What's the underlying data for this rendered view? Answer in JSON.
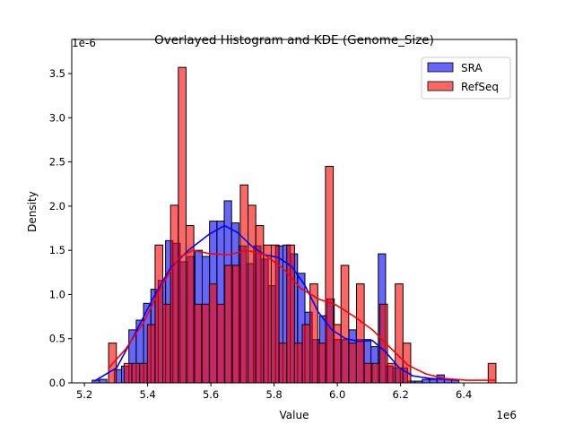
{
  "chart_data": {
    "type": "bar",
    "title": "Overlayed Histogram and KDE (Genome_Size)",
    "xlabel": "Value",
    "ylabel": "Density",
    "x_offset_label": "1e6",
    "y_offset_label": "1e-6",
    "xlim": [
      5.16,
      6.567
    ],
    "ylim": [
      0,
      3.886
    ],
    "xticks": [
      5.2,
      5.4,
      5.6,
      5.8,
      6.0,
      6.2,
      6.4
    ],
    "xtick_labels": [
      "5.2",
      "5.4",
      "5.6",
      "5.8",
      "6.0",
      "6.2",
      "6.4"
    ],
    "yticks": [
      0,
      0.5,
      1.0,
      1.5,
      2.0,
      2.5,
      3.0,
      3.5
    ],
    "ytick_labels": [
      "0.0",
      "0.5",
      "1.0",
      "1.5",
      "2.0",
      "2.5",
      "3.0",
      "3.5"
    ],
    "grid": false,
    "legend_position": "top-right",
    "series": [
      {
        "name": "SRA",
        "color": "#0000ff",
        "bin_start": 5.2247,
        "bin_width": 0.0232,
        "values": [
          0.03,
          0.04,
          0,
          0.15,
          0.19,
          0.6,
          0.71,
          0.9,
          1.06,
          1.16,
          1.61,
          1.58,
          1.37,
          1.43,
          1.5,
          1.43,
          1.83,
          1.83,
          2.06,
          1.81,
          1.55,
          1.35,
          1.55,
          1.4,
          1.1,
          1.55,
          1.56,
          1.46,
          1.24,
          0.8,
          0.49,
          0.76,
          0.95,
          0.49,
          0.49,
          0.6,
          0.49,
          0.49,
          0.41,
          1.46,
          0.19,
          0.17,
          0.17,
          0.02,
          0.02,
          0.04,
          0.04,
          0.09,
          0.04,
          0.03
        ],
        "kde": {
          "x": [
            5.231,
            5.302,
            5.359,
            5.416,
            5.472,
            5.529,
            5.594,
            5.643,
            5.685,
            5.728,
            5.77,
            5.813,
            5.855,
            5.898,
            5.94,
            5.983,
            6.026,
            6.068,
            6.111,
            6.153,
            6.196,
            6.238,
            6.295,
            6.38
          ],
          "y": [
            0.02,
            0.17,
            0.55,
            0.95,
            1.3,
            1.5,
            1.68,
            1.78,
            1.7,
            1.55,
            1.45,
            1.42,
            1.32,
            1.1,
            0.8,
            0.6,
            0.5,
            0.47,
            0.48,
            0.35,
            0.17,
            0.08,
            0.05,
            0.03
          ]
        }
      },
      {
        "name": "RefSeq",
        "color": "#ff0000",
        "bin_start": 5.2766,
        "bin_width": 0.0245,
        "values": [
          0.45,
          0,
          0.22,
          0.22,
          0.22,
          0.66,
          1.56,
          0.89,
          2.01,
          3.57,
          1.78,
          0.89,
          0.89,
          1.12,
          0.89,
          1.33,
          1.33,
          2.24,
          2.01,
          1.78,
          1.56,
          1.56,
          0.45,
          1.56,
          0.45,
          0.66,
          1.12,
          0.45,
          2.45,
          0.66,
          1.33,
          0.45,
          1.12,
          0.22,
          0.22,
          0.89,
          0.22,
          1.12,
          0.45,
          0,
          0,
          0,
          0,
          0,
          0,
          0,
          0,
          0,
          0,
          0.22
        ],
        "kde": {
          "x": [
            5.277,
            5.33,
            5.387,
            5.444,
            5.5,
            5.543,
            5.6,
            5.657,
            5.713,
            5.77,
            5.827,
            5.884,
            5.94,
            5.997,
            6.054,
            6.111,
            6.167,
            6.224,
            6.281,
            6.338,
            6.409,
            6.502
          ],
          "y": [
            0.17,
            0.38,
            0.68,
            1.1,
            1.42,
            1.5,
            1.46,
            1.45,
            1.5,
            1.45,
            1.3,
            1.07,
            0.95,
            0.88,
            0.75,
            0.6,
            0.4,
            0.2,
            0.1,
            0.05,
            0.03,
            0.03
          ]
        }
      }
    ]
  }
}
